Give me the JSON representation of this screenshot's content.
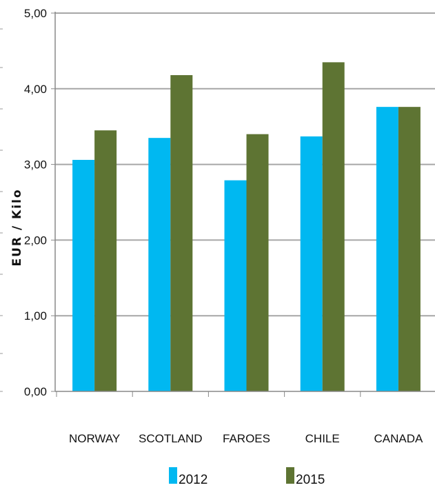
{
  "chart_data": {
    "type": "bar",
    "ylabel": "EUR / Kilo",
    "categories": [
      "NORWAY",
      "SCOTLAND",
      "FAROES",
      "CHILE",
      "CANADA"
    ],
    "series": [
      {
        "name": "2012",
        "color": "#00B8F1",
        "values": [
          3.06,
          3.35,
          2.79,
          3.37,
          3.76
        ]
      },
      {
        "name": "2015",
        "color": "#5E7433",
        "values": [
          3.45,
          4.18,
          3.4,
          4.35,
          3.76
        ]
      }
    ],
    "yticks": [
      "0,00",
      "1,00",
      "2,00",
      "3,00",
      "4,00",
      "5,00"
    ],
    "ylim": [
      0,
      5
    ],
    "grid": true,
    "legend_position": "bottom"
  }
}
